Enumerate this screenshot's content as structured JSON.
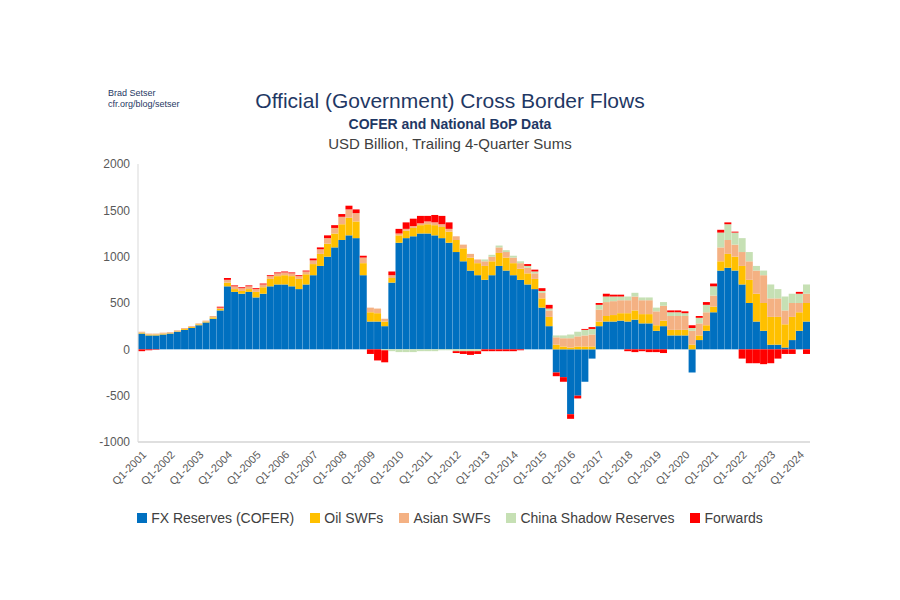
{
  "chart_data": {
    "type": "bar",
    "title": "Official (Government) Cross Border Flows",
    "subtitle": [
      "COFER and National BoP Data",
      "USD Billion, Trailing 4-Quarter Sums"
    ],
    "annotations": [
      "Brad Setser",
      "cfr.org/blog/setser"
    ],
    "stacked": true,
    "legend": "bottom",
    "grid": false,
    "categories": [
      "Q1-2001",
      null,
      null,
      null,
      "Q1-2002",
      null,
      null,
      null,
      "Q1-2003",
      null,
      null,
      null,
      "Q1-2004",
      null,
      null,
      null,
      "Q1-2005",
      null,
      null,
      null,
      "Q1-2006",
      null,
      null,
      null,
      "Q1-2007",
      null,
      null,
      null,
      "Q1-2008",
      null,
      null,
      null,
      "Q1-2009",
      null,
      null,
      null,
      "Q1-2010",
      null,
      null,
      null,
      "Q1-2011",
      null,
      null,
      null,
      "Q1-2012",
      null,
      null,
      null,
      "Q1-2013",
      null,
      null,
      null,
      "Q1-2014",
      null,
      null,
      null,
      "Q1-2015",
      null,
      null,
      null,
      "Q1-2016",
      null,
      null,
      null,
      "Q1-2017",
      null,
      null,
      null,
      "Q1-2018",
      null,
      null,
      null,
      "Q1-2019",
      null,
      null,
      null,
      "Q1-2020",
      null,
      null,
      null,
      "Q1-2021",
      null,
      null,
      null,
      "Q1-2022",
      null,
      null,
      null,
      "Q1-2023",
      null,
      null,
      null,
      "Q1-2024",
      null
    ],
    "ylim": [
      -1000,
      2000
    ],
    "yticks": [
      -1000,
      -500,
      0,
      500,
      1000,
      1500,
      2000
    ],
    "series": [
      {
        "name": "FX Reserves (COFER)",
        "color": "#0070C0",
        "values": [
          170,
          150,
          150,
          160,
          170,
          190,
          210,
          230,
          260,
          290,
          330,
          420,
          680,
          620,
          600,
          620,
          560,
          600,
          680,
          700,
          700,
          680,
          650,
          700,
          800,
          900,
          1000,
          1100,
          1180,
          1230,
          1200,
          800,
          300,
          300,
          250,
          720,
          1150,
          1200,
          1220,
          1250,
          1250,
          1230,
          1200,
          1150,
          1050,
          950,
          850,
          800,
          750,
          800,
          900,
          850,
          800,
          750,
          700,
          650,
          450,
          250,
          -250,
          -300,
          -700,
          -500,
          -350,
          -100,
          250,
          300,
          300,
          310,
          300,
          320,
          280,
          280,
          200,
          250,
          150,
          150,
          150,
          -250,
          100,
          200,
          400,
          850,
          880,
          850,
          700,
          500,
          300,
          200,
          50,
          50,
          20,
          100,
          200,
          300
        ]
      },
      {
        "name": "Oil SWFs",
        "color": "#FFC000",
        "values": [
          10,
          10,
          10,
          10,
          5,
          5,
          10,
          10,
          10,
          10,
          15,
          15,
          40,
          30,
          30,
          30,
          60,
          70,
          80,
          90,
          100,
          110,
          110,
          110,
          120,
          130,
          140,
          150,
          170,
          190,
          180,
          130,
          100,
          90,
          50,
          50,
          80,
          80,
          90,
          90,
          100,
          110,
          120,
          120,
          130,
          140,
          140,
          130,
          150,
          150,
          140,
          140,
          130,
          120,
          120,
          110,
          100,
          100,
          50,
          30,
          20,
          30,
          30,
          30,
          50,
          60,
          70,
          80,
          90,
          100,
          100,
          100,
          60,
          60,
          60,
          60,
          60,
          50,
          50,
          60,
          60,
          100,
          150,
          150,
          200,
          250,
          300,
          300,
          300,
          300,
          250,
          250,
          200,
          200
        ]
      },
      {
        "name": "Asian SWFs",
        "color": "#F4B183",
        "values": [
          10,
          10,
          10,
          10,
          10,
          10,
          10,
          10,
          10,
          10,
          15,
          15,
          30,
          30,
          30,
          30,
          30,
          30,
          30,
          30,
          30,
          30,
          30,
          30,
          40,
          50,
          60,
          60,
          80,
          90,
          90,
          60,
          50,
          50,
          30,
          30,
          20,
          20,
          20,
          20,
          30,
          30,
          30,
          30,
          40,
          40,
          40,
          40,
          50,
          50,
          60,
          60,
          60,
          60,
          60,
          60,
          60,
          70,
          80,
          90,
          100,
          110,
          120,
          130,
          130,
          150,
          150,
          140,
          140,
          150,
          150,
          150,
          150,
          160,
          150,
          150,
          150,
          150,
          130,
          140,
          120,
          150,
          150,
          130,
          150,
          200,
          250,
          300,
          200,
          200,
          150,
          150,
          100,
          100
        ]
      },
      {
        "name": "China Shadow Reserves",
        "color": "#C6E0B4",
        "values": [
          0,
          0,
          0,
          0,
          0,
          0,
          0,
          0,
          0,
          0,
          0,
          0,
          0,
          0,
          0,
          0,
          0,
          0,
          0,
          0,
          0,
          0,
          0,
          0,
          0,
          0,
          0,
          0,
          0,
          0,
          0,
          0,
          0,
          0,
          -10,
          -20,
          -30,
          -30,
          -30,
          -20,
          -20,
          -20,
          -10,
          -10,
          -20,
          -20,
          -20,
          -20,
          20,
          20,
          20,
          20,
          20,
          20,
          20,
          20,
          20,
          20,
          20,
          30,
          40,
          50,
          60,
          60,
          50,
          60,
          50,
          40,
          40,
          40,
          30,
          30,
          40,
          40,
          40,
          40,
          30,
          30,
          60,
          80,
          100,
          160,
          170,
          130,
          150,
          100,
          50,
          50,
          150,
          100,
          150,
          100,
          100,
          100
        ]
      },
      {
        "name": "Forwards",
        "color": "#FF0000",
        "values": [
          -20,
          -10,
          -5,
          0,
          0,
          0,
          0,
          0,
          0,
          0,
          0,
          10,
          20,
          10,
          10,
          10,
          10,
          10,
          10,
          10,
          10,
          10,
          10,
          10,
          20,
          20,
          30,
          30,
          30,
          40,
          40,
          20,
          -50,
          -120,
          -130,
          40,
          50,
          70,
          80,
          80,
          60,
          80,
          90,
          70,
          -20,
          -30,
          -40,
          -30,
          -20,
          -20,
          -20,
          -20,
          -20,
          -10,
          20,
          20,
          30,
          40,
          -40,
          -50,
          -50,
          -30,
          10,
          20,
          20,
          30,
          20,
          20,
          -20,
          -30,
          -20,
          -30,
          -30,
          -40,
          20,
          20,
          20,
          30,
          20,
          30,
          30,
          30,
          20,
          10,
          -100,
          -150,
          -150,
          -160,
          -150,
          -100,
          -50,
          -50,
          20,
          -50
        ]
      }
    ]
  }
}
